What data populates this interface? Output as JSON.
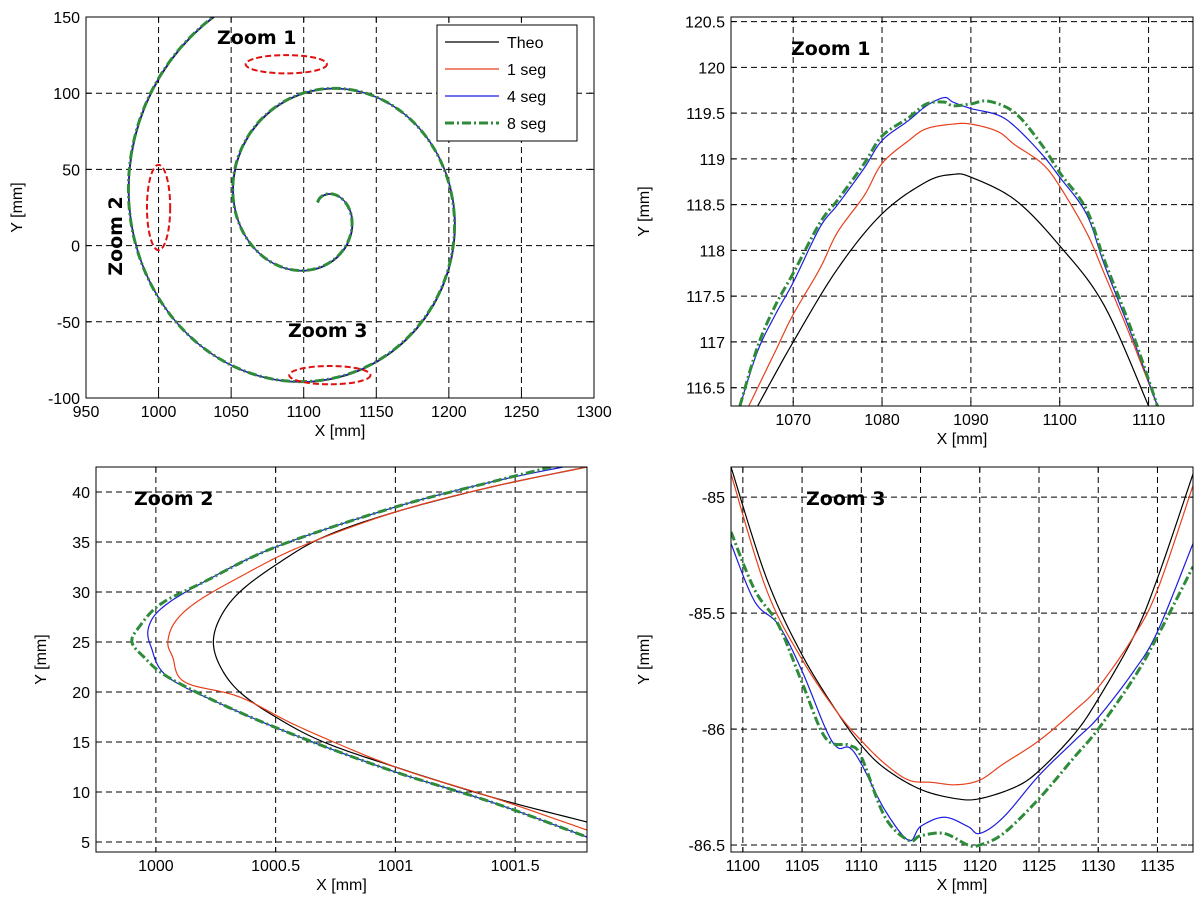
{
  "colors": {
    "theo": "#000000",
    "seg1": "#e8401c",
    "seg4": "#1c1ce0",
    "seg8": "#2e8b3a",
    "highlight": "#e01010",
    "grid": "#000000"
  },
  "legend": [
    "Theo",
    "1 seg",
    "4 seg",
    "8 seg"
  ],
  "chart_data": [
    {
      "type": "line",
      "panel": "main",
      "xlabel": "X [mm]",
      "ylabel": "Y [mm]",
      "xlim": [
        950,
        1300
      ],
      "ylim": [
        -100,
        150
      ],
      "xticks": [
        950,
        1000,
        1050,
        1100,
        1150,
        1200,
        1250,
        1300
      ],
      "yticks": [
        -100,
        -50,
        0,
        50,
        100,
        150
      ],
      "grid": true,
      "legend_position": "top-right",
      "annotations": [
        "Zoom 1",
        "Zoom 2",
        "Zoom 3"
      ],
      "highlight_regions": [
        {
          "label": "Zoom 1",
          "center": [
            1088,
            119
          ],
          "radius": [
            28,
            6
          ]
        },
        {
          "label": "Zoom 2",
          "center": [
            1000,
            25
          ],
          "radius": [
            8,
            28
          ]
        },
        {
          "label": "Zoom 3",
          "center": [
            1118,
            -85
          ],
          "radius": [
            28,
            6
          ]
        }
      ],
      "spiral": {
        "center": [
          1110,
          25
        ],
        "r0": 3,
        "r_end": 148,
        "theta_end_deg": 720
      },
      "series": [
        {
          "name": "Theo",
          "style": "solid"
        },
        {
          "name": "1 seg",
          "style": "solid"
        },
        {
          "name": "4 seg",
          "style": "solid"
        },
        {
          "name": "8 seg",
          "style": "dashdot"
        }
      ]
    },
    {
      "type": "line",
      "panel": "zoom1",
      "annotation": "Zoom 1",
      "xlabel": "X [mm]",
      "ylabel": "Y [mm]",
      "xlim": [
        1063,
        1115
      ],
      "ylim": [
        116.3,
        120.55
      ],
      "xticks": [
        1070,
        1080,
        1090,
        1100,
        1110
      ],
      "yticks": [
        116.5,
        117,
        117.5,
        118,
        118.5,
        119,
        119.5,
        120,
        120.5
      ],
      "grid": true,
      "series": [
        {
          "name": "Theo",
          "x": [
            1066,
            1070,
            1075,
            1080,
            1085,
            1088,
            1090,
            1095,
            1100,
            1105,
            1110
          ],
          "y": [
            116.3,
            117.0,
            117.8,
            118.4,
            118.75,
            118.83,
            118.8,
            118.55,
            118.05,
            117.4,
            116.3
          ]
        },
        {
          "name": "1 seg",
          "x": [
            1065,
            1068,
            1070,
            1073,
            1075,
            1078,
            1080,
            1083,
            1085,
            1088,
            1090,
            1093,
            1095,
            1098,
            1100,
            1103,
            1105,
            1108,
            1111
          ],
          "y": [
            116.3,
            116.9,
            117.3,
            117.8,
            118.2,
            118.6,
            118.95,
            119.2,
            119.33,
            119.38,
            119.38,
            119.3,
            119.15,
            118.95,
            118.7,
            118.2,
            117.75,
            117.05,
            116.3
          ]
        },
        {
          "name": "4 seg",
          "x": [
            1064,
            1066,
            1068,
            1070,
            1073,
            1075,
            1078,
            1080,
            1083,
            1085,
            1087,
            1088,
            1090,
            1093,
            1095,
            1098,
            1100,
            1103,
            1105,
            1108,
            1111
          ],
          "y": [
            116.3,
            116.9,
            117.3,
            117.65,
            118.25,
            118.5,
            118.9,
            119.2,
            119.42,
            119.58,
            119.67,
            119.62,
            119.55,
            119.48,
            119.35,
            119.05,
            118.8,
            118.4,
            117.85,
            117.1,
            116.3
          ]
        },
        {
          "name": "8 seg",
          "x": [
            1064,
            1066,
            1068,
            1070,
            1073,
            1075,
            1078,
            1080,
            1083,
            1085,
            1087,
            1088,
            1090,
            1092,
            1095,
            1098,
            1100,
            1103,
            1105,
            1108,
            1111
          ],
          "y": [
            116.3,
            116.95,
            117.4,
            117.75,
            118.3,
            118.55,
            118.95,
            119.25,
            119.45,
            119.6,
            119.62,
            119.58,
            119.6,
            119.63,
            119.5,
            119.15,
            118.85,
            118.45,
            117.9,
            117.15,
            116.3
          ]
        }
      ]
    },
    {
      "type": "line",
      "panel": "zoom2",
      "annotation": "Zoom 2",
      "xlabel": "X [mm]",
      "ylabel": "Y [mm]",
      "xlim": [
        999.75,
        1001.8
      ],
      "ylim": [
        4,
        42.5
      ],
      "xticks": [
        1000,
        1000.5,
        1001,
        1001.5
      ],
      "yticks": [
        5,
        10,
        15,
        20,
        25,
        30,
        35,
        40
      ],
      "grid": true,
      "series": [
        {
          "name": "Theo",
          "x": [
            1001.8,
            1001.4,
            1001.0,
            1000.7,
            1000.5,
            1000.35,
            1000.27,
            1000.24,
            1000.27,
            1000.35,
            1000.5,
            1000.7,
            1001.0,
            1001.4,
            1001.8
          ],
          "y": [
            42.5,
            40.5,
            38.0,
            35.5,
            32.7,
            30.0,
            27.5,
            25.0,
            22.5,
            20.0,
            17.5,
            15.0,
            12.5,
            9.5,
            7.0
          ]
        },
        {
          "name": "1 seg",
          "x": [
            1001.8,
            1001.4,
            1001.0,
            1000.6,
            1000.35,
            1000.17,
            1000.08,
            1000.05,
            1000.07,
            1000.12,
            1000.35,
            1000.6,
            1001.0,
            1001.4,
            1001.8
          ],
          "y": [
            42.5,
            40.5,
            38.0,
            34.5,
            31.5,
            29.0,
            27.0,
            25.0,
            23.5,
            21.0,
            19.5,
            16.5,
            12.5,
            9.5,
            6.2
          ]
        },
        {
          "name": "4 seg",
          "x": [
            1001.7,
            1001.4,
            1001.0,
            1000.5,
            1000.2,
            1000.03,
            999.97,
            999.98,
            1000.05,
            1000.3,
            1000.6,
            1001.0,
            1001.4,
            1001.8
          ],
          "y": [
            42.5,
            41.0,
            38.5,
            34.5,
            31.0,
            28.5,
            26.5,
            24.5,
            21.5,
            18.5,
            15.5,
            12.0,
            9.0,
            5.5
          ]
        },
        {
          "name": "8 seg",
          "x": [
            1001.65,
            1001.4,
            1001.0,
            1000.5,
            1000.2,
            1000.02,
            999.93,
            999.9,
            999.95,
            1000.05,
            1000.3,
            1000.6,
            1001.0,
            1001.4,
            1001.8
          ],
          "y": [
            42.5,
            41.0,
            38.5,
            34.5,
            31.0,
            28.8,
            26.5,
            25.0,
            23.5,
            21.5,
            18.5,
            15.5,
            12.0,
            9.0,
            5.5
          ]
        }
      ]
    },
    {
      "type": "line",
      "panel": "zoom3",
      "annotation": "Zoom 3",
      "xlabel": "X [mm]",
      "ylabel": "Y [mm]",
      "xlim": [
        1099,
        1138
      ],
      "ylim": [
        -86.53,
        -84.87
      ],
      "xticks": [
        1100,
        1105,
        1110,
        1115,
        1120,
        1125,
        1130,
        1135
      ],
      "yticks": [
        -85,
        -85.5,
        -86,
        -86.5
      ],
      "grid": true,
      "series": [
        {
          "name": "Theo",
          "x": [
            1099,
            1102,
            1105,
            1108,
            1110,
            1112,
            1115,
            1118,
            1120,
            1123,
            1125,
            1128,
            1130,
            1133,
            1135,
            1138
          ],
          "y": [
            -84.87,
            -85.35,
            -85.68,
            -85.93,
            -86.07,
            -86.17,
            -86.26,
            -86.3,
            -86.3,
            -86.25,
            -86.18,
            -86.02,
            -85.87,
            -85.6,
            -85.35,
            -84.9
          ]
        },
        {
          "name": "1 seg",
          "x": [
            1099,
            1102,
            1105,
            1108,
            1110,
            1112,
            1114,
            1116,
            1118,
            1120,
            1122,
            1125,
            1128,
            1130,
            1133,
            1135,
            1138
          ],
          "y": [
            -84.9,
            -85.4,
            -85.7,
            -85.93,
            -86.05,
            -86.15,
            -86.22,
            -86.23,
            -86.24,
            -86.22,
            -86.15,
            -86.05,
            -85.92,
            -85.82,
            -85.6,
            -85.4,
            -84.95
          ]
        },
        {
          "name": "4 seg",
          "x": [
            1099,
            1101,
            1103,
            1105,
            1107,
            1108,
            1109,
            1110,
            1112,
            1114,
            1115,
            1117,
            1119,
            1120,
            1122,
            1125,
            1128,
            1130,
            1133,
            1135,
            1138
          ],
          "y": [
            -85.2,
            -85.45,
            -85.55,
            -85.75,
            -86.0,
            -86.08,
            -86.08,
            -86.15,
            -86.35,
            -86.48,
            -86.42,
            -86.38,
            -86.42,
            -86.45,
            -86.38,
            -86.2,
            -86.05,
            -85.95,
            -85.75,
            -85.58,
            -85.2
          ]
        },
        {
          "name": "8 seg",
          "x": [
            1099,
            1101,
            1103,
            1105,
            1107,
            1109,
            1110,
            1112,
            1114,
            1115,
            1117,
            1119,
            1120,
            1122,
            1125,
            1128,
            1130,
            1133,
            1135,
            1138
          ],
          "y": [
            -85.15,
            -85.4,
            -85.55,
            -85.8,
            -86.04,
            -86.07,
            -86.12,
            -86.38,
            -86.48,
            -86.46,
            -86.45,
            -86.5,
            -86.5,
            -86.45,
            -86.3,
            -86.12,
            -86.0,
            -85.78,
            -85.6,
            -85.3
          ]
        }
      ]
    }
  ]
}
